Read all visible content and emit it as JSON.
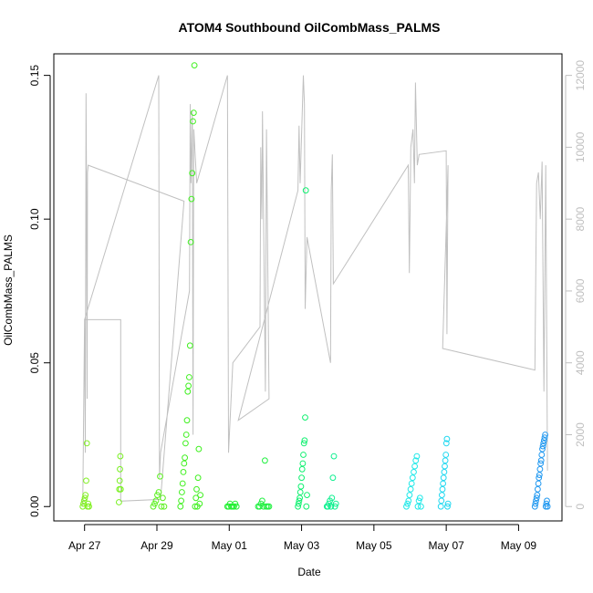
{
  "chart_data": {
    "type": "scatter",
    "title": "ATOM4 Southbound OilCombMass_PALMS",
    "xlabel": "Date",
    "ylabel": "OilCombMass_PALMS",
    "x_ticks": [
      {
        "label": "Apr 27",
        "value": 0
      },
      {
        "label": "Apr 29",
        "value": 2
      },
      {
        "label": "May 01",
        "value": 4
      },
      {
        "label": "May 03",
        "value": 6
      },
      {
        "label": "May 05",
        "value": 8
      },
      {
        "label": "May 07",
        "value": 10
      },
      {
        "label": "May 09",
        "value": 12
      }
    ],
    "xlim": [
      -0.85,
      13.2
    ],
    "ylim": [
      -0.005,
      0.1575
    ],
    "y_ticks": [
      {
        "label": "0.00",
        "value": 0.0
      },
      {
        "label": "0.05",
        "value": 0.05
      },
      {
        "label": "0.10",
        "value": 0.1
      },
      {
        "label": "0.15",
        "value": 0.15
      }
    ],
    "y2lim": [
      -400,
      12600
    ],
    "y2_ticks": [
      {
        "label": "0",
        "value": 0
      },
      {
        "label": "2000",
        "value": 2000
      },
      {
        "label": "4000",
        "value": 4000
      },
      {
        "label": "6000",
        "value": 6000
      },
      {
        "label": "8000",
        "value": 8000
      },
      {
        "label": "10000",
        "value": 10000
      },
      {
        "label": "12000",
        "value": 12000
      }
    ],
    "grid": false,
    "altitude_line_color": "#c0c0c0",
    "flights": [
      {
        "start": -0.05,
        "end": 0.12,
        "color": "#80f020",
        "yvals": [
          0.0,
          0.001,
          0.002,
          0.003,
          0.004,
          0.009,
          0.022,
          0.0,
          0.001,
          0.0
        ]
      },
      {
        "start": 0.95,
        "end": 1.0,
        "color": "#78f020",
        "yvals": [
          0.0015,
          0.006,
          0.009,
          0.013,
          0.0175,
          0.006
        ]
      },
      {
        "start": 1.9,
        "end": 2.2,
        "color": "#5cf020",
        "yvals": [
          0.0,
          0.001,
          0.002,
          0.004,
          0.005,
          0.0105,
          0.0,
          0.003,
          0.0
        ]
      },
      {
        "start": 2.65,
        "end": 3.2,
        "color": "#40f020",
        "yvals": [
          0.0,
          0.002,
          0.005,
          0.008,
          0.012,
          0.015,
          0.017,
          0.022,
          0.025,
          0.03,
          0.04,
          0.042,
          0.045,
          0.056,
          0.092,
          0.107,
          0.116,
          0.134,
          0.137,
          0.1535,
          0.0,
          0.003,
          0.006,
          0.0,
          0.01,
          0.02,
          0.001,
          0.004
        ]
      },
      {
        "start": 3.95,
        "end": 4.2,
        "color": "#20f030",
        "yvals": [
          0.0,
          0.0,
          0.001,
          0.0,
          0.0,
          0.0,
          0.001,
          0.0
        ]
      },
      {
        "start": 4.8,
        "end": 5.1,
        "color": "#20f040",
        "yvals": [
          0.0,
          0.0,
          0.001,
          0.002,
          0.0,
          0.016,
          0.0,
          0.0,
          0.0
        ]
      },
      {
        "start": 5.9,
        "end": 6.15,
        "color": "#10f070",
        "yvals": [
          0.0,
          0.001,
          0.002,
          0.003,
          0.005,
          0.007,
          0.01,
          0.013,
          0.015,
          0.018,
          0.022,
          0.023,
          0.031,
          0.11,
          0.0,
          0.004
        ]
      },
      {
        "start": 6.7,
        "end": 6.95,
        "color": "#10f090",
        "yvals": [
          0.0,
          0.0,
          0.001,
          0.002,
          0.0,
          0.003,
          0.01,
          0.0175,
          0.0,
          0.001
        ]
      },
      {
        "start": 8.9,
        "end": 9.3,
        "color": "#20e8e8",
        "yvals": [
          0.0,
          0.001,
          0.002,
          0.004,
          0.006,
          0.008,
          0.01,
          0.012,
          0.014,
          0.016,
          0.0175,
          0.0,
          0.002,
          0.003,
          0.0
        ]
      },
      {
        "start": 9.85,
        "end": 10.05,
        "color": "#20d8f0",
        "yvals": [
          0.0,
          0.002,
          0.004,
          0.006,
          0.008,
          0.01,
          0.012,
          0.014,
          0.016,
          0.018,
          0.022,
          0.0235,
          0.0,
          0.001
        ]
      },
      {
        "start": 12.45,
        "end": 12.8,
        "color": "#2098f0",
        "yvals": [
          0.0,
          0.001,
          0.002,
          0.003,
          0.004,
          0.006,
          0.008,
          0.01,
          0.011,
          0.013,
          0.015,
          0.016,
          0.018,
          0.02,
          0.021,
          0.022,
          0.023,
          0.024,
          0.025,
          0.0,
          0.001,
          0.002,
          0.0
        ]
      }
    ],
    "altitude_path": [
      [
        -0.05,
        0
      ],
      [
        0.0,
        5200
      ],
      [
        0.02,
        1500
      ],
      [
        0.04,
        11500
      ],
      [
        0.05,
        9600
      ],
      [
        0.07,
        3000
      ],
      [
        0.08,
        9300
      ],
      [
        0.1,
        9500
      ],
      [
        2.75,
        8500
      ],
      [
        2.1,
        200
      ],
      [
        1.0,
        150
      ],
      [
        1.0,
        5200
      ],
      [
        0.0,
        5200
      ],
      [
        2.05,
        12000
      ],
      [
        2.07,
        800
      ],
      [
        2.1,
        1500
      ],
      [
        2.9,
        6000
      ],
      [
        2.92,
        11200
      ],
      [
        2.94,
        9000
      ],
      [
        2.98,
        11000
      ],
      [
        3.0,
        2000
      ],
      [
        3.02,
        10500
      ],
      [
        3.1,
        9000
      ],
      [
        3.95,
        12000
      ],
      [
        3.98,
        1500
      ],
      [
        4.1,
        4000
      ],
      [
        4.85,
        5000
      ],
      [
        4.87,
        10000
      ],
      [
        4.9,
        8000
      ],
      [
        4.92,
        11000
      ],
      [
        5.0,
        3200
      ],
      [
        5.03,
        10500
      ],
      [
        5.1,
        3000
      ],
      [
        4.25,
        2400
      ],
      [
        5.9,
        8800
      ],
      [
        5.93,
        10600
      ],
      [
        5.96,
        9000
      ],
      [
        6.05,
        12000
      ],
      [
        6.08,
        11200
      ],
      [
        6.1,
        5500
      ],
      [
        6.15,
        7500
      ],
      [
        6.8,
        4000
      ],
      [
        6.82,
        8800
      ],
      [
        6.85,
        9800
      ],
      [
        6.88,
        6200
      ],
      [
        8.95,
        9500
      ],
      [
        8.98,
        6500
      ],
      [
        9.02,
        10000
      ],
      [
        9.08,
        10500
      ],
      [
        9.12,
        9000
      ],
      [
        9.15,
        11800
      ],
      [
        9.2,
        9500
      ],
      [
        9.25,
        9800
      ],
      [
        10.0,
        9900
      ],
      [
        10.02,
        4800
      ],
      [
        10.05,
        9500
      ],
      [
        9.9,
        4400
      ],
      [
        12.45,
        3800
      ],
      [
        12.5,
        9000
      ],
      [
        12.55,
        9300
      ],
      [
        12.6,
        8000
      ],
      [
        12.65,
        9600
      ],
      [
        12.7,
        3200
      ],
      [
        12.75,
        9500
      ],
      [
        12.8,
        1000
      ]
    ]
  }
}
